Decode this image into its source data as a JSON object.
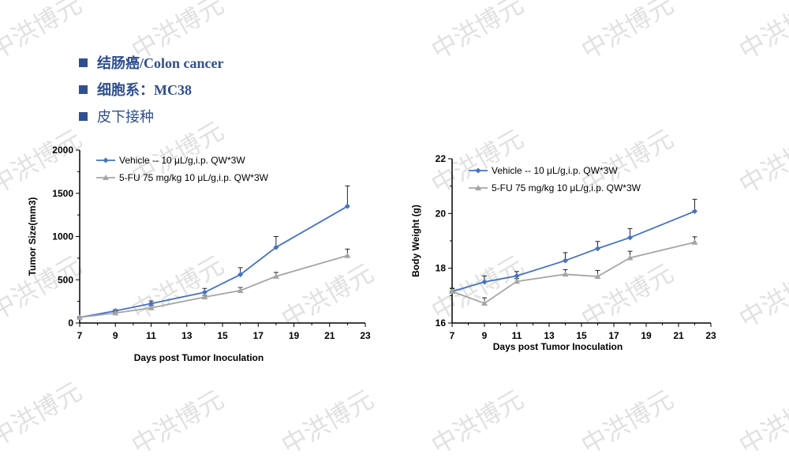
{
  "bullets": [
    "结肠癌/Colon cancer",
    "细胞系：MC38",
    "皮下接种"
  ],
  "watermark": "中洪博元",
  "colors": {
    "vehicle": "#4472c4",
    "fu": "#a5a5a5",
    "bullet": "#2f4f8f"
  },
  "chart_data": [
    {
      "type": "line",
      "xlabel": "Days post Tumor Inoculation",
      "ylabel": "Tumor Size(mm3)",
      "xlim": [
        7,
        23
      ],
      "ylim": [
        0,
        2000
      ],
      "xticks": [
        7,
        9,
        11,
        13,
        15,
        17,
        19,
        21,
        23
      ],
      "yticks": [
        0,
        500,
        1000,
        1500,
        2000
      ],
      "legend": "top-left",
      "x": [
        7,
        9,
        11,
        14,
        16,
        18,
        22
      ],
      "series": [
        {
          "name": "Vehicle -- 10 μL/g,i.p. QW*3W",
          "marker": "diamond",
          "values": [
            65,
            140,
            225,
            355,
            560,
            875,
            1350
          ],
          "error": [
            5,
            15,
            30,
            45,
            80,
            125,
            235
          ]
        },
        {
          "name": "5-FU 75 mg/kg 10 μL/g,i.p. QW*3W",
          "marker": "triangle",
          "values": [
            65,
            115,
            175,
            300,
            375,
            540,
            780
          ],
          "error": [
            5,
            10,
            25,
            20,
            35,
            45,
            75
          ]
        }
      ]
    },
    {
      "type": "line",
      "xlabel": "Days post Tumor Inoculation",
      "ylabel": "Body Weight (g)",
      "xlim": [
        7,
        23
      ],
      "ylim": [
        16,
        22
      ],
      "xticks": [
        7,
        9,
        11,
        13,
        15,
        17,
        19,
        21,
        23
      ],
      "yticks": [
        16,
        18,
        20,
        22
      ],
      "legend": "top-left",
      "x": [
        7,
        9,
        11,
        14,
        16,
        18,
        22
      ],
      "series": [
        {
          "name": "Vehicle -- 10 μL/g,i.p. QW*3W",
          "marker": "diamond",
          "values": [
            17.15,
            17.5,
            17.72,
            18.28,
            18.72,
            19.12,
            20.08
          ],
          "error": [
            0.1,
            0.22,
            0.16,
            0.29,
            0.26,
            0.33,
            0.44
          ]
        },
        {
          "name": "5-FU 75 mg/kg 10 μL/g,i.p. QW*3W",
          "marker": "triangle",
          "values": [
            17.15,
            16.72,
            17.52,
            17.78,
            17.7,
            18.38,
            18.95
          ],
          "error": [
            0.12,
            0.2,
            0.1,
            0.17,
            0.22,
            0.24,
            0.2
          ]
        }
      ]
    }
  ]
}
